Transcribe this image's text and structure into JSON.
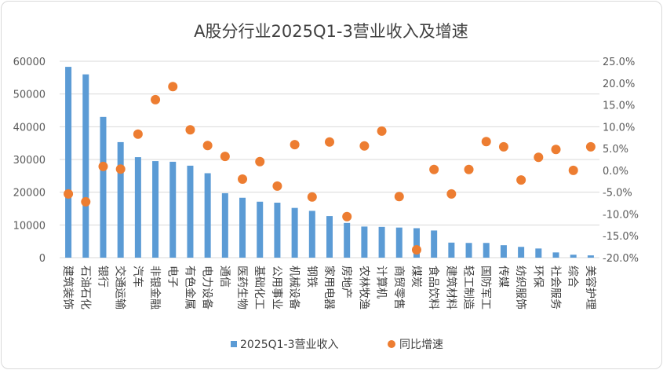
{
  "chart_data": {
    "type": "bar+scatter",
    "title": "A股分行业2025Q1-3营业收入及增速",
    "categories": [
      "建筑装饰",
      "石油石化",
      "银行",
      "交通运输",
      "汽车",
      "非银金融",
      "电子",
      "有色金属",
      "电力设备",
      "通信",
      "医药生物",
      "基础化工",
      "公用事业",
      "机械设备",
      "钢铁",
      "家用电器",
      "房地产",
      "农林牧渔",
      "计算机",
      "商贸零售",
      "煤炭",
      "食品饮料",
      "建筑材料",
      "轻工制造",
      "国防军工",
      "传媒",
      "纺织服饰",
      "环保",
      "社会服务",
      "综合",
      "美容护理"
    ],
    "series": [
      {
        "name": "2025Q1-3营业收入",
        "type": "bar",
        "axis": "left",
        "color": "#5b9bd5",
        "values": [
          58300,
          56000,
          43000,
          35300,
          30700,
          29500,
          29300,
          28100,
          25800,
          19700,
          18300,
          17100,
          16800,
          15200,
          14300,
          12700,
          10600,
          9500,
          9400,
          9200,
          9000,
          8300,
          4600,
          4500,
          4500,
          3800,
          3300,
          2800,
          1600,
          900,
          700
        ]
      },
      {
        "name": "同比增速",
        "type": "scatter",
        "axis": "right",
        "color": "#ed7d31",
        "values": [
          -5.4,
          -7.2,
          0.9,
          0.3,
          8.3,
          16.2,
          19.2,
          9.3,
          5.7,
          3.2,
          -2.0,
          2.0,
          -3.6,
          5.9,
          -6.1,
          6.5,
          -10.6,
          5.6,
          9.0,
          -6.0,
          -18.2,
          0.2,
          -5.4,
          0.2,
          6.6,
          5.4,
          -2.2,
          3.0,
          4.8,
          0.0,
          5.4
        ]
      }
    ],
    "y_left": {
      "range": [
        0,
        60000
      ],
      "ticks": [
        "0",
        "10000",
        "20000",
        "30000",
        "40000",
        "50000",
        "60000"
      ]
    },
    "y_right": {
      "range": [
        -20,
        25
      ],
      "unit": "%",
      "ticks": [
        "-20.0%",
        "-15.0%",
        "-10.0%",
        "-5.0%",
        "0.0%",
        "5.0%",
        "10.0%",
        "15.0%",
        "20.0%",
        "25.0%"
      ]
    },
    "grid": true,
    "legend_position": "bottom"
  }
}
